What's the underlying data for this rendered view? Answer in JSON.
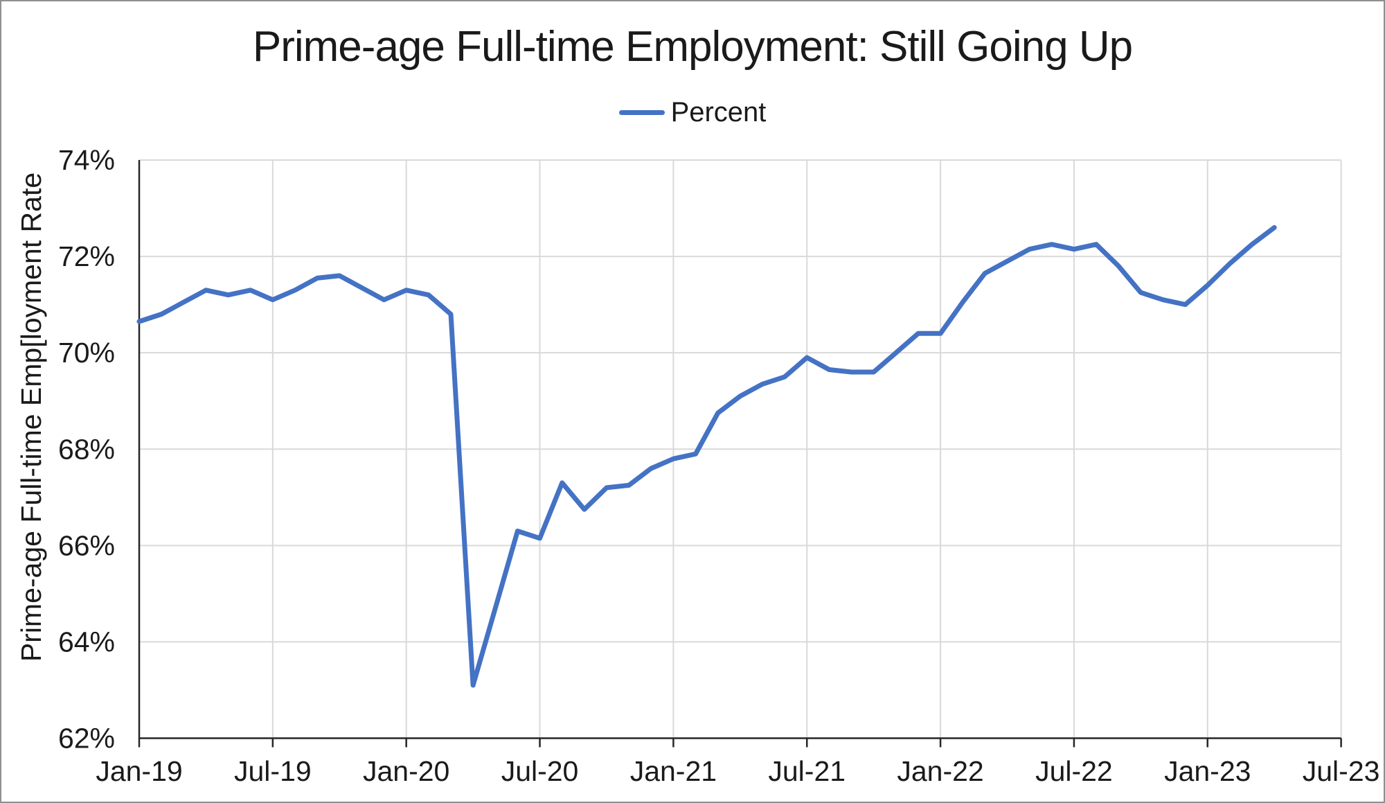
{
  "colors": {
    "line": "#4472C4",
    "grid": "#D9D9D9",
    "axis": "#262626",
    "text": "#1a1a1a",
    "frame_border": "#8f8f8f",
    "background": "#ffffff"
  },
  "chart_data": {
    "type": "line",
    "title": "Prime-age Full-time Employment: Still Going Up",
    "legend_label": "Percent",
    "legend_position": "top-center",
    "xlabel": "",
    "ylabel": "Prime-age Full-time Emp[loyment Rate",
    "ylim": [
      62,
      74
    ],
    "ytick_labels": [
      "74%",
      "72%",
      "70%",
      "68%",
      "66%",
      "64%",
      "62%"
    ],
    "ytick_values": [
      74,
      72,
      70,
      68,
      66,
      64,
      62
    ],
    "xtick_labels": [
      "Jan-19",
      "Jul-19",
      "Jan-20",
      "Jul-20",
      "Jan-21",
      "Jul-21",
      "Jan-22",
      "Jul-22",
      "Jan-23",
      "Jul-23"
    ],
    "x_axis_total_months": 54,
    "grid": true,
    "series": [
      {
        "name": "Percent",
        "start": "Jan-19",
        "end": "Apr-23",
        "frequency": "monthly",
        "values": [
          70.65,
          70.8,
          71.05,
          71.3,
          71.2,
          71.3,
          71.1,
          71.3,
          71.55,
          71.6,
          71.35,
          71.1,
          71.3,
          71.2,
          70.8,
          63.1,
          64.7,
          66.3,
          66.15,
          67.3,
          66.75,
          67.2,
          67.25,
          67.6,
          67.8,
          67.9,
          68.75,
          69.1,
          69.35,
          69.5,
          69.9,
          69.65,
          69.6,
          69.6,
          70.0,
          70.4,
          70.4,
          71.05,
          71.65,
          71.9,
          72.15,
          72.25,
          72.15,
          72.25,
          71.8,
          71.25,
          71.1,
          71.0,
          71.4,
          71.85,
          72.25,
          72.6
        ]
      }
    ]
  }
}
